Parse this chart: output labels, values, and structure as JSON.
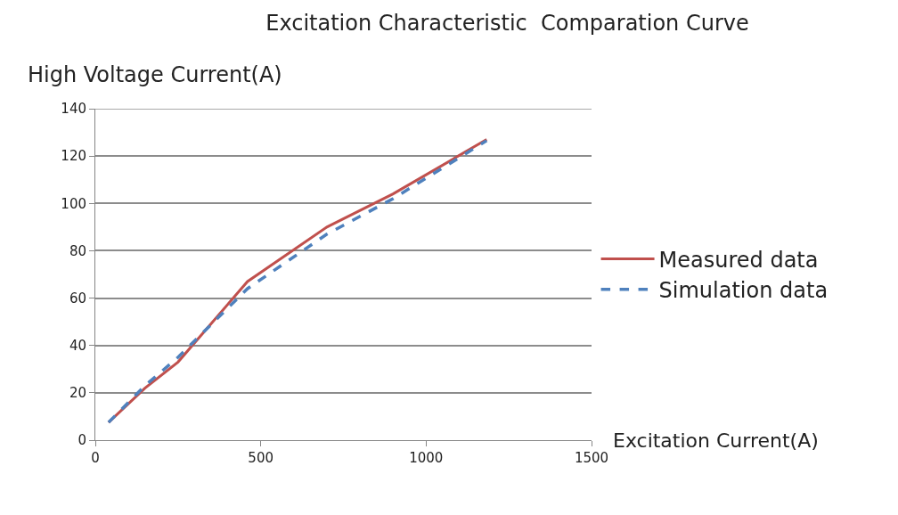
{
  "chart_data": {
    "type": "line",
    "title": "Excitation Characteristic  Comparation Curve",
    "xlabel": "Excitation Current(A)",
    "ylabel": "High Voltage Current(A)",
    "xlim": [
      0,
      1500
    ],
    "xticks": [
      0,
      500,
      1000,
      1500
    ],
    "ylim": [
      0,
      140
    ],
    "yticks": [
      0,
      20,
      40,
      60,
      80,
      100,
      120,
      140
    ],
    "grid": "y",
    "legend": "right",
    "series": [
      {
        "name": "Measured data",
        "color": "#c0504d",
        "line_style": "solid",
        "x": [
          40,
          150,
          250,
          460,
          700,
          900,
          1183
        ],
        "values": [
          7.5,
          22,
          33,
          67,
          90,
          104,
          127
        ]
      },
      {
        "name": "Simulation data",
        "color": "#4f81bd",
        "line_style": "dashed",
        "x": [
          40,
          150,
          250,
          460,
          700,
          900,
          1183
        ],
        "values": [
          7.5,
          23,
          35,
          64,
          87,
          102,
          126.5
        ]
      }
    ]
  }
}
